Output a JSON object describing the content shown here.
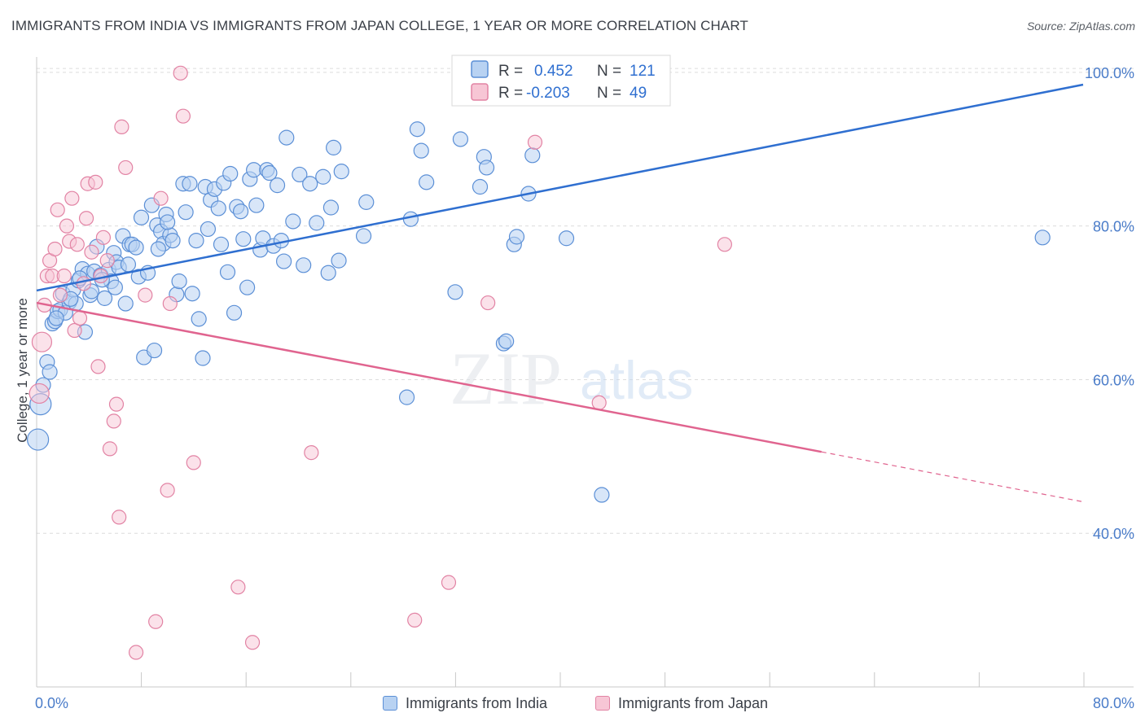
{
  "header": {
    "title": "IMMIGRANTS FROM INDIA VS IMMIGRANTS FROM JAPAN COLLEGE, 1 YEAR OR MORE CORRELATION CHART",
    "source": "Source: ZipAtlas.com"
  },
  "watermark": {
    "zip": "ZIP",
    "atlas": "atlas"
  },
  "legend_box": {
    "india": {
      "r_label": "R =",
      "r_value": "0.452",
      "n_label": "N =",
      "n_value": "121"
    },
    "japan": {
      "r_label": "R =",
      "r_value": "-0.203",
      "n_label": "N =",
      "n_value": "49"
    }
  },
  "bottom_legend": {
    "india_label": "Immigrants from India",
    "japan_label": "Immigrants from Japan"
  },
  "colors": {
    "india_fill": "#b8d2f2",
    "india_stroke": "#5b8fd6",
    "india_line": "#2f6fd0",
    "japan_fill": "#f7c6d5",
    "japan_stroke": "#e283a4",
    "japan_line": "#e0648f",
    "tick_text": "#4a7cc9"
  },
  "chart_data": {
    "type": "scatter",
    "title": "IMMIGRANTS FROM INDIA VS IMMIGRANTS FROM JAPAN COLLEGE, 1 YEAR OR MORE CORRELATION CHART",
    "xlabel": "",
    "ylabel": "College, 1 year or more",
    "xlim": [
      0,
      80
    ],
    "ylim": [
      20,
      102
    ],
    "x_tick_labels": [
      "0.0%",
      "80.0%"
    ],
    "y_ticks": [
      40,
      60,
      80,
      100
    ],
    "y_tick_labels": [
      "40.0%",
      "60.0%",
      "80.0%",
      "100.0%"
    ],
    "grid": true,
    "series": [
      {
        "name": "Immigrants from India",
        "r": 0.452,
        "n": 121,
        "trend": {
          "x1": 0,
          "y1": 71.6,
          "x2": 80,
          "y2": 98.4
        },
        "points": [
          [
            0.1,
            52.2
          ],
          [
            0.3,
            56.8
          ],
          [
            0.5,
            59.3
          ],
          [
            0.8,
            62.3
          ],
          [
            1.0,
            61.0
          ],
          [
            1.2,
            67.3
          ],
          [
            1.4,
            67.6
          ],
          [
            1.6,
            68.9
          ],
          [
            1.8,
            69.1
          ],
          [
            2.0,
            71.2
          ],
          [
            2.2,
            68.7
          ],
          [
            2.5,
            70.1
          ],
          [
            2.8,
            71.7
          ],
          [
            3.0,
            69.9
          ],
          [
            3.2,
            72.9
          ],
          [
            3.5,
            74.4
          ],
          [
            3.7,
            66.2
          ],
          [
            3.9,
            73.8
          ],
          [
            4.1,
            71.0
          ],
          [
            4.4,
            74.1
          ],
          [
            4.6,
            77.3
          ],
          [
            4.9,
            73.6
          ],
          [
            5.2,
            70.6
          ],
          [
            5.5,
            74.3
          ],
          [
            5.7,
            72.8
          ],
          [
            5.9,
            76.5
          ],
          [
            6.1,
            75.3
          ],
          [
            6.3,
            74.6
          ],
          [
            6.6,
            78.7
          ],
          [
            6.8,
            69.9
          ],
          [
            7.1,
            77.6
          ],
          [
            7.3,
            77.6
          ],
          [
            7.6,
            77.2
          ],
          [
            7.8,
            73.4
          ],
          [
            8.0,
            81.1
          ],
          [
            8.2,
            62.9
          ],
          [
            8.5,
            73.9
          ],
          [
            8.8,
            82.7
          ],
          [
            9.0,
            63.8
          ],
          [
            9.2,
            80.1
          ],
          [
            9.5,
            79.3
          ],
          [
            9.7,
            77.7
          ],
          [
            9.9,
            81.5
          ],
          [
            10.2,
            78.8
          ],
          [
            10.4,
            78.1
          ],
          [
            10.7,
            71.1
          ],
          [
            10.9,
            72.8
          ],
          [
            11.2,
            85.5
          ],
          [
            11.4,
            81.8
          ],
          [
            11.7,
            85.5
          ],
          [
            11.9,
            71.2
          ],
          [
            12.2,
            78.1
          ],
          [
            12.4,
            67.9
          ],
          [
            12.7,
            62.8
          ],
          [
            12.9,
            85.1
          ],
          [
            13.1,
            79.6
          ],
          [
            13.3,
            83.4
          ],
          [
            13.6,
            84.8
          ],
          [
            13.9,
            82.3
          ],
          [
            14.1,
            77.6
          ],
          [
            14.3,
            85.6
          ],
          [
            14.6,
            74.0
          ],
          [
            14.8,
            86.8
          ],
          [
            15.1,
            68.7
          ],
          [
            15.3,
            82.5
          ],
          [
            15.6,
            81.9
          ],
          [
            15.8,
            78.3
          ],
          [
            16.1,
            72.0
          ],
          [
            16.3,
            86.1
          ],
          [
            16.6,
            87.3
          ],
          [
            16.8,
            82.7
          ],
          [
            17.1,
            76.9
          ],
          [
            17.3,
            78.4
          ],
          [
            17.6,
            87.3
          ],
          [
            17.8,
            86.9
          ],
          [
            18.1,
            77.4
          ],
          [
            18.4,
            85.3
          ],
          [
            18.7,
            78.1
          ],
          [
            18.9,
            75.4
          ],
          [
            19.1,
            91.5
          ],
          [
            19.6,
            80.6
          ],
          [
            20.1,
            86.7
          ],
          [
            20.4,
            74.9
          ],
          [
            20.9,
            85.5
          ],
          [
            21.4,
            80.4
          ],
          [
            21.9,
            86.4
          ],
          [
            22.3,
            73.9
          ],
          [
            22.5,
            82.4
          ],
          [
            22.7,
            90.2
          ],
          [
            23.1,
            75.5
          ],
          [
            23.3,
            87.1
          ],
          [
            25.0,
            78.7
          ],
          [
            25.2,
            83.1
          ],
          [
            28.3,
            57.7
          ],
          [
            28.6,
            80.9
          ],
          [
            29.1,
            92.6
          ],
          [
            29.4,
            89.8
          ],
          [
            29.8,
            85.7
          ],
          [
            32.0,
            71.4
          ],
          [
            32.4,
            91.3
          ],
          [
            33.9,
            85.1
          ],
          [
            34.2,
            89.0
          ],
          [
            34.4,
            87.6
          ],
          [
            35.7,
            64.7
          ],
          [
            35.9,
            65.0
          ],
          [
            36.5,
            77.6
          ],
          [
            36.7,
            78.6
          ],
          [
            37.6,
            84.2
          ],
          [
            37.9,
            89.2
          ],
          [
            40.5,
            78.4
          ],
          [
            43.2,
            45.0
          ],
          [
            76.9,
            78.5
          ],
          [
            1.5,
            68.0
          ],
          [
            2.6,
            70.5
          ],
          [
            3.3,
            73.2
          ],
          [
            4.2,
            71.5
          ],
          [
            5.0,
            73.0
          ],
          [
            6.0,
            72.0
          ],
          [
            7.0,
            75.0
          ],
          [
            9.3,
            77.0
          ],
          [
            10.0,
            80.5
          ]
        ]
      },
      {
        "name": "Immigrants from Japan",
        "r": -0.203,
        "n": 49,
        "trend": {
          "x1": 0,
          "y1": 70.0,
          "x2": 60,
          "y2": 50.6,
          "dash_to_x": 80,
          "dash_to_y": 44.1
        },
        "points": [
          [
            0.2,
            58.2
          ],
          [
            0.4,
            64.9
          ],
          [
            0.6,
            69.7
          ],
          [
            0.8,
            73.5
          ],
          [
            1.0,
            75.5
          ],
          [
            1.2,
            73.5
          ],
          [
            1.4,
            77.0
          ],
          [
            1.6,
            82.1
          ],
          [
            1.8,
            71.0
          ],
          [
            2.1,
            73.5
          ],
          [
            2.3,
            80.0
          ],
          [
            2.5,
            78.0
          ],
          [
            2.7,
            83.6
          ],
          [
            2.9,
            66.4
          ],
          [
            3.1,
            77.6
          ],
          [
            3.3,
            68.0
          ],
          [
            3.6,
            72.5
          ],
          [
            3.8,
            81.0
          ],
          [
            3.9,
            85.5
          ],
          [
            4.2,
            76.6
          ],
          [
            4.5,
            85.7
          ],
          [
            4.7,
            61.7
          ],
          [
            4.9,
            73.5
          ],
          [
            5.1,
            78.5
          ],
          [
            5.4,
            75.5
          ],
          [
            5.6,
            51.0
          ],
          [
            5.9,
            54.6
          ],
          [
            6.1,
            56.8
          ],
          [
            6.3,
            42.1
          ],
          [
            6.5,
            92.9
          ],
          [
            6.8,
            87.6
          ],
          [
            7.6,
            24.5
          ],
          [
            8.3,
            71.0
          ],
          [
            9.1,
            28.5
          ],
          [
            9.5,
            83.6
          ],
          [
            10.0,
            45.6
          ],
          [
            10.2,
            69.9
          ],
          [
            11.0,
            99.9
          ],
          [
            11.2,
            94.3
          ],
          [
            12.0,
            49.2
          ],
          [
            15.4,
            33.0
          ],
          [
            16.5,
            25.8
          ],
          [
            21.0,
            50.5
          ],
          [
            28.9,
            28.7
          ],
          [
            31.5,
            33.6
          ],
          [
            34.5,
            70.0
          ],
          [
            38.1,
            90.9
          ],
          [
            43.0,
            57.0
          ],
          [
            52.6,
            77.6
          ]
        ]
      }
    ]
  }
}
